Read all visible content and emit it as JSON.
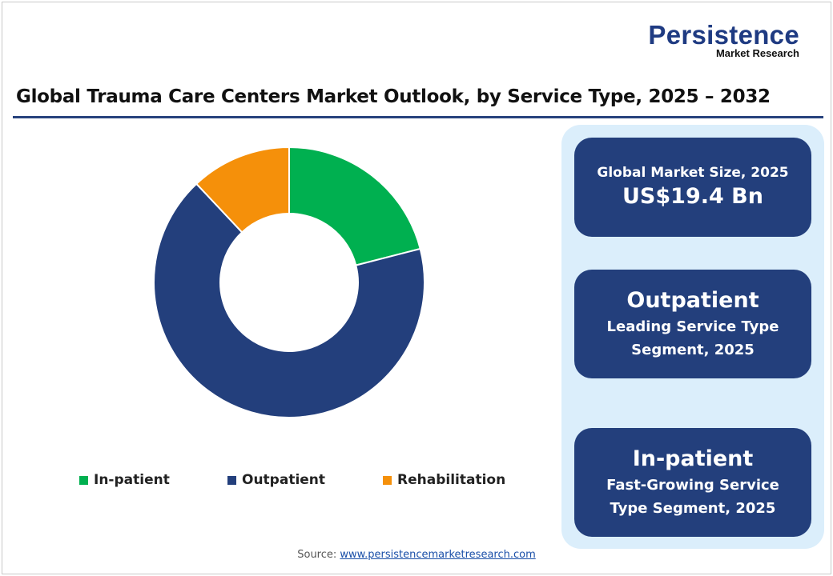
{
  "logo": {
    "name": "Persistence",
    "sub": "Market Research"
  },
  "title": "Global Trauma Care Centers Market Outlook, by Service Type, 2025 – 2032",
  "cards": [
    {
      "label": "Global Market Size, 2025",
      "value": "US$19.4 Bn"
    },
    {
      "value": "Outpatient",
      "label_line1": "Leading Service Type",
      "label_line2": "Segment, 2025"
    },
    {
      "value": "In-patient",
      "label_line1": "Fast-Growing Service",
      "label_line2": "Type Segment, 2025"
    }
  ],
  "source": {
    "label": "Source:",
    "link": "www.persistencemarketresearch.com"
  },
  "chart_data": {
    "type": "pie",
    "donut": true,
    "title": "Global Trauma Care Centers Market Outlook, by Service Type, 2025 – 2032",
    "categories": [
      "In-patient",
      "Outpatient",
      "Rehabilitation"
    ],
    "values": [
      21,
      67,
      12
    ],
    "unit": "% share (estimated)",
    "colors": [
      "#00b050",
      "#233f7c",
      "#f5900a"
    ],
    "legend_position": "bottom"
  }
}
